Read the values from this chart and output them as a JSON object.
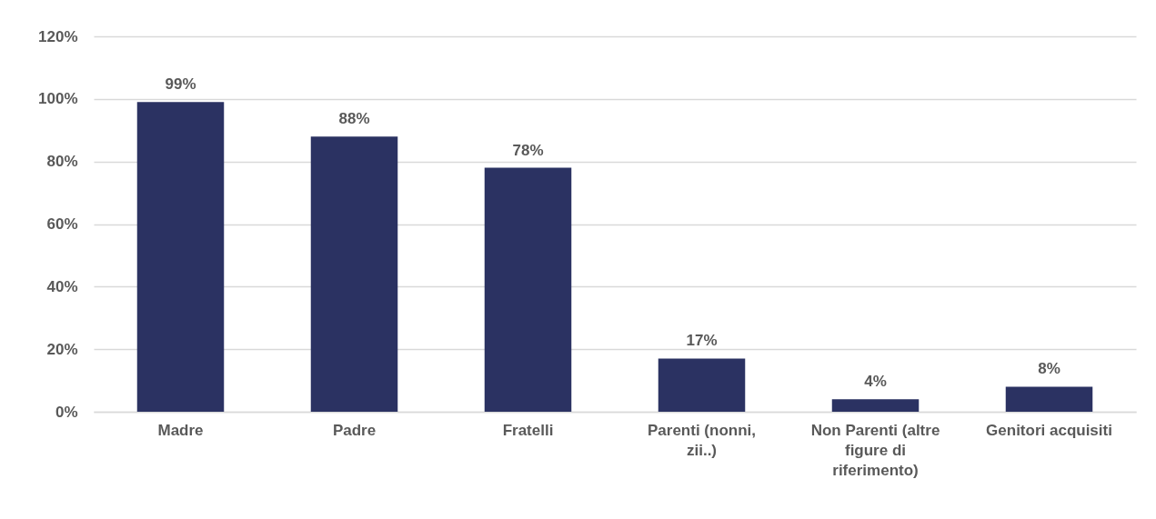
{
  "chart_data": {
    "type": "bar",
    "categories": [
      "Madre",
      "Padre",
      "Fratelli",
      "Parenti  (nonni, zii..)",
      "Non Parenti (altre figure di riferimento)",
      "Genitori acquisiti"
    ],
    "values": [
      99,
      88,
      78,
      17,
      4,
      8
    ],
    "value_labels": [
      "99%",
      "88%",
      "78%",
      "17%",
      "4%",
      "8%"
    ],
    "color": "#2b3262",
    "ylim": [
      0,
      120
    ],
    "yticks": [
      {
        "value": 0,
        "label": "0%"
      },
      {
        "value": 20,
        "label": "20%"
      },
      {
        "value": 40,
        "label": "40%"
      },
      {
        "value": 60,
        "label": "60%"
      },
      {
        "value": 80,
        "label": "80%"
      },
      {
        "value": 100,
        "label": "100%"
      },
      {
        "value": 120,
        "label": "120%"
      }
    ],
    "grid": "y"
  }
}
